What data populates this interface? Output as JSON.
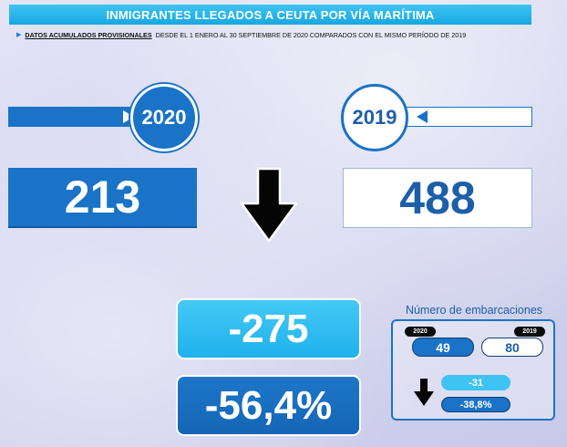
{
  "header": {
    "title": "INMIGRANTES LLEGADOS A CEUTA POR VÍA MARÍTIMA",
    "subtitle_highlight": "DATOS ACUMULADOS PROVISIONALES",
    "subtitle_rest": "DESDE EL 1 ENERO AL 30 SEPTIEMBRE DE 2020 COMPARADOS CON EL MISMO PERÍODO DE 2019"
  },
  "years": {
    "current": "2020",
    "previous": "2019"
  },
  "totals": {
    "current": "213",
    "previous": "488"
  },
  "difference": {
    "absolute": "-275",
    "percent": "-56,4%"
  },
  "boats": {
    "title": "Número de embarcaciones",
    "year_current": "2020",
    "year_previous": "2019",
    "current": "49",
    "previous": "80",
    "diff_absolute": "-31",
    "diff_percent": "-38,8%"
  },
  "icons": {
    "trend": "down-arrow-icon",
    "banner_arrows": "triangle-arrow-icon"
  },
  "colors": {
    "primary_blue": "#1a73c7",
    "light_blue": "#1fb2ec",
    "title_blue": "#17a7e2",
    "text_blue": "#1d5fa8"
  }
}
